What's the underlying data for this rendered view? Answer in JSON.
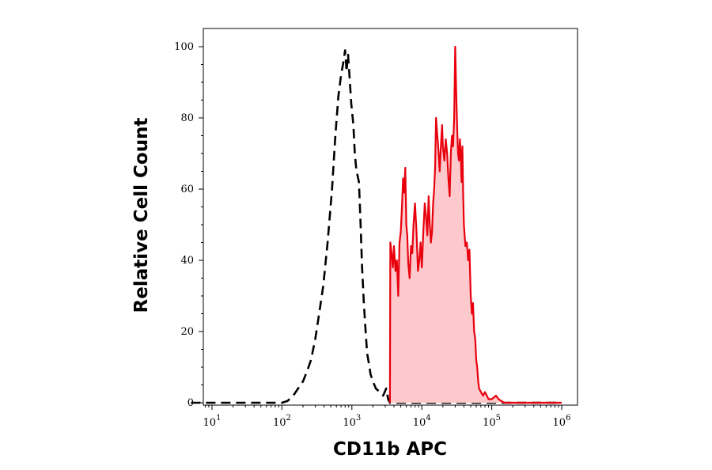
{
  "chart_data": {
    "type": "area",
    "title": "",
    "xlabel": "CD11b APC",
    "ylabel": "Relative Cell Count",
    "x_scale": "log10",
    "xlim": [
      5,
      1000000
    ],
    "ylim": [
      0,
      105
    ],
    "x_ticks": [
      {
        "base": "10",
        "exp": "1",
        "value": 10
      },
      {
        "base": "10",
        "exp": "2",
        "value": 100
      },
      {
        "base": "10",
        "exp": "3",
        "value": 1000
      },
      {
        "base": "10",
        "exp": "4",
        "value": 10000
      },
      {
        "base": "10",
        "exp": "5",
        "value": 100000
      },
      {
        "base": "10",
        "exp": "6",
        "value": 1000000
      }
    ],
    "y_ticks": [
      {
        "label": "0",
        "value": 0
      },
      {
        "label": "20",
        "value": 20
      },
      {
        "label": "40",
        "value": 40
      },
      {
        "label": "60",
        "value": 60
      },
      {
        "label": "80",
        "value": 80
      },
      {
        "label": "100",
        "value": 100
      }
    ],
    "grid": false,
    "legend": "none",
    "series": [
      {
        "style": "dashed",
        "color": "#000000",
        "fill": "none",
        "points": [
          [
            5,
            0
          ],
          [
            100,
            0
          ],
          [
            120,
            0.5
          ],
          [
            145,
            2
          ],
          [
            170,
            4
          ],
          [
            200,
            6
          ],
          [
            230,
            9
          ],
          [
            260,
            12
          ],
          [
            300,
            18
          ],
          [
            340,
            25
          ],
          [
            390,
            33
          ],
          [
            450,
            45
          ],
          [
            520,
            60
          ],
          [
            580,
            75
          ],
          [
            640,
            86
          ],
          [
            700,
            92
          ],
          [
            760,
            96
          ],
          [
            800,
            99
          ],
          [
            840,
            93
          ],
          [
            880,
            98
          ],
          [
            930,
            91
          ],
          [
            980,
            84
          ],
          [
            1050,
            78
          ],
          [
            1100,
            70
          ],
          [
            1150,
            66
          ],
          [
            1200,
            64
          ],
          [
            1260,
            62
          ],
          [
            1320,
            52
          ],
          [
            1400,
            38
          ],
          [
            1480,
            28
          ],
          [
            1560,
            21
          ],
          [
            1650,
            14
          ],
          [
            1750,
            11
          ],
          [
            1850,
            8
          ],
          [
            2000,
            6
          ],
          [
            2200,
            4
          ],
          [
            2500,
            3
          ],
          [
            2800,
            2
          ],
          [
            3100,
            4
          ],
          [
            3300,
            1
          ],
          [
            3500,
            0
          ],
          [
            1000000,
            0
          ]
        ]
      },
      {
        "style": "solid",
        "color": "#e8000d",
        "fill": "#fdc9cc",
        "points": [
          [
            3500,
            0
          ],
          [
            3550,
            45
          ],
          [
            3700,
            42
          ],
          [
            3850,
            38
          ],
          [
            4000,
            44
          ],
          [
            4200,
            37
          ],
          [
            4400,
            40
          ],
          [
            4600,
            30
          ],
          [
            4800,
            45
          ],
          [
            5000,
            48
          ],
          [
            5200,
            55
          ],
          [
            5400,
            63
          ],
          [
            5600,
            59
          ],
          [
            5800,
            66
          ],
          [
            6000,
            50
          ],
          [
            6200,
            47
          ],
          [
            6400,
            39
          ],
          [
            6700,
            35
          ],
          [
            7000,
            44
          ],
          [
            7300,
            42
          ],
          [
            7600,
            50
          ],
          [
            8000,
            56
          ],
          [
            8400,
            48
          ],
          [
            8800,
            37
          ],
          [
            9200,
            40
          ],
          [
            9600,
            45
          ],
          [
            10000,
            38
          ],
          [
            10500,
            48
          ],
          [
            11000,
            56
          ],
          [
            11500,
            52
          ],
          [
            12000,
            47
          ],
          [
            12500,
            58
          ],
          [
            13000,
            50
          ],
          [
            13500,
            45
          ],
          [
            14000,
            48
          ],
          [
            14500,
            56
          ],
          [
            15000,
            60
          ],
          [
            15500,
            66
          ],
          [
            16000,
            80
          ],
          [
            16500,
            76
          ],
          [
            17000,
            73
          ],
          [
            17500,
            69
          ],
          [
            18000,
            65
          ],
          [
            18500,
            70
          ],
          [
            19000,
            74
          ],
          [
            19500,
            78
          ],
          [
            20000,
            72
          ],
          [
            21000,
            68
          ],
          [
            22000,
            74
          ],
          [
            23000,
            70
          ],
          [
            24000,
            63
          ],
          [
            25000,
            58
          ],
          [
            26000,
            70
          ],
          [
            27000,
            75
          ],
          [
            28000,
            72
          ],
          [
            29000,
            80
          ],
          [
            30000,
            100
          ],
          [
            31000,
            88
          ],
          [
            32000,
            77
          ],
          [
            33000,
            70
          ],
          [
            34000,
            68
          ],
          [
            35000,
            74
          ],
          [
            36000,
            70
          ],
          [
            37000,
            62
          ],
          [
            38000,
            72
          ],
          [
            39000,
            58
          ],
          [
            40000,
            50
          ],
          [
            42000,
            44
          ],
          [
            44000,
            45
          ],
          [
            46000,
            40
          ],
          [
            48000,
            43
          ],
          [
            50000,
            30
          ],
          [
            52000,
            25
          ],
          [
            54000,
            28
          ],
          [
            56000,
            20
          ],
          [
            58000,
            18
          ],
          [
            60000,
            12
          ],
          [
            62000,
            10
          ],
          [
            64000,
            6
          ],
          [
            66000,
            4
          ],
          [
            70000,
            3
          ],
          [
            75000,
            2
          ],
          [
            80000,
            3
          ],
          [
            90000,
            1
          ],
          [
            100000,
            1
          ],
          [
            115000,
            2
          ],
          [
            125000,
            1
          ],
          [
            150000,
            0
          ],
          [
            1000000,
            0
          ]
        ]
      }
    ]
  }
}
